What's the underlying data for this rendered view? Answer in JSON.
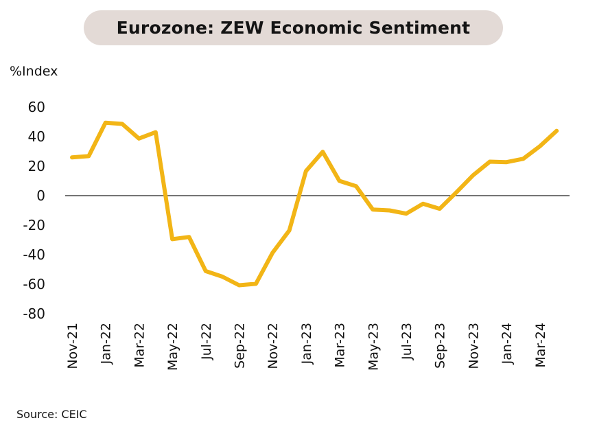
{
  "title": "Eurozone: ZEW Economic Sentiment",
  "unit_label": "%Index",
  "source": "Source: CEIC",
  "chart_data": {
    "type": "line",
    "title": "Eurozone: ZEW Economic Sentiment",
    "ylabel": "%Index",
    "xlabel": "",
    "ylim": [
      -80,
      60
    ],
    "yticks": [
      60,
      40,
      20,
      0,
      -20,
      -40,
      -60,
      -80
    ],
    "xtick_labels": [
      "Nov-21",
      "Jan-22",
      "Mar-22",
      "May-22",
      "Jul-22",
      "Sep-22",
      "Nov-22",
      "Jan-23",
      "Mar-23",
      "May-23",
      "Jul-23",
      "Sep-23",
      "Nov-23",
      "Jan-24",
      "Mar-24"
    ],
    "grid": false,
    "legend": "none",
    "line_color": "#f2b516",
    "x": [
      "Nov-21",
      "Dec-21",
      "Jan-22",
      "Feb-22",
      "Mar-22",
      "Apr-22",
      "May-22",
      "Jun-22",
      "Jul-22",
      "Aug-22",
      "Sep-22",
      "Oct-22",
      "Nov-22",
      "Dec-22",
      "Jan-23",
      "Feb-23",
      "Mar-23",
      "Apr-23",
      "May-23",
      "Jun-23",
      "Jul-23",
      "Aug-23",
      "Sep-23",
      "Oct-23",
      "Nov-23",
      "Dec-23",
      "Jan-24",
      "Feb-24",
      "Mar-24",
      "Apr-24"
    ],
    "series": [
      {
        "values": [
          25.9,
          26.8,
          49.4,
          48.6,
          38.7,
          43.0,
          -29.5,
          -28.0,
          -51.1,
          -54.9,
          -60.7,
          -59.7,
          -38.7,
          -23.6,
          16.7,
          29.7,
          10.0,
          6.4,
          -9.4,
          -10.0,
          -12.2,
          -5.5,
          -8.9,
          2.3,
          13.8,
          23.0,
          22.7,
          25.0,
          33.5,
          43.9
        ]
      }
    ]
  }
}
